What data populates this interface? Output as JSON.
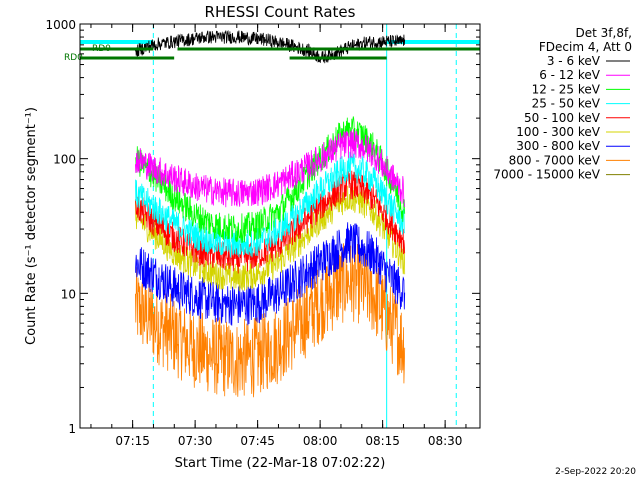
{
  "chart_data": {
    "type": "line",
    "title": "RHESSI Count Rates",
    "xlabel": "Start Time (22-Mar-18 07:02:22)",
    "ylabel": "Count Rate (s⁻¹ detector segment⁻¹)",
    "yscale": "log",
    "ylim": [
      1,
      1000
    ],
    "xlim_minutes_after_start": [
      0,
      96
    ],
    "x_tick_labels": [
      "07:15",
      "07:30",
      "07:45",
      "08:00",
      "08:15",
      "08:30"
    ],
    "x_tick_minutes_after_start": [
      12.63,
      27.63,
      42.63,
      57.63,
      72.63,
      87.63
    ],
    "y_tick_labels": [
      "1",
      "10",
      "100",
      "1000"
    ],
    "y_tick_values": [
      1,
      10,
      100,
      1000
    ],
    "grid": false,
    "legend_position": "right",
    "legend_header": [
      "Det 3f,8f,",
      "FDecim 4, Att 0"
    ],
    "footer_date": "2-Sep-2022 20:20",
    "flags": [
      {
        "label": "RD0",
        "segments": [
          [
            0,
            17.6
          ],
          [
            23.4,
            96
          ]
        ]
      },
      {
        "label": "RD0",
        "segments": [
          [
            0,
            22.6
          ],
          [
            50.3,
            73.6
          ]
        ]
      }
    ],
    "cyan_bands": [
      [
        0,
        17.6
      ],
      [
        73.6,
        96
      ]
    ],
    "vertical_lines": [
      {
        "minute": 17.6,
        "style": "dashed"
      },
      {
        "minute": 73.6,
        "style": "solid"
      },
      {
        "minute": 90.3,
        "style": "dashed"
      }
    ],
    "series": [
      {
        "name": "3 - 6 keV",
        "color": "#000000",
        "x": [
          13.3,
          14,
          17.6,
          22.6,
          30,
          38,
          45,
          50,
          55,
          58,
          62,
          65,
          69,
          73.6,
          77,
          78
        ],
        "y": [
          600,
          640,
          700,
          740,
          800,
          800,
          760,
          700,
          630,
          560,
          620,
          680,
          730,
          740,
          740,
          760
        ]
      },
      {
        "name": "6 - 12 keV",
        "color": "#ff00ff",
        "x": [
          13.3,
          17.6,
          22.6,
          27.6,
          32.6,
          37.6,
          42.6,
          47.6,
          52.6,
          57.6,
          62.6,
          64.6,
          67.6,
          70.6,
          74.6,
          78
        ],
        "y": [
          100,
          85,
          72,
          62,
          57,
          55,
          57,
          65,
          80,
          100,
          125,
          130,
          125,
          108,
          75,
          55
        ]
      },
      {
        "name": "12 - 25 keV",
        "color": "#00ff00",
        "x": [
          13.3,
          17.6,
          22.6,
          27.6,
          32.6,
          37.6,
          42.6,
          47.6,
          52.6,
          57.6,
          62.6,
          64.6,
          67.6,
          70.6,
          74.6,
          78
        ],
        "y": [
          100,
          75,
          52,
          38,
          32,
          30,
          32,
          40,
          62,
          100,
          150,
          165,
          150,
          120,
          70,
          40
        ]
      },
      {
        "name": "25 - 50 keV",
        "color": "#00ffff",
        "x": [
          13.3,
          17.6,
          22.6,
          27.6,
          32.6,
          37.6,
          42.6,
          47.6,
          52.6,
          57.6,
          62.6,
          64.6,
          67.6,
          70.6,
          74.6,
          78
        ],
        "y": [
          55,
          44,
          33,
          27,
          24,
          23,
          24,
          29,
          40,
          58,
          80,
          88,
          82,
          68,
          45,
          32
        ]
      },
      {
        "name": "50 - 100 keV",
        "color": "#ff0000",
        "x": [
          13.3,
          17.6,
          22.6,
          27.6,
          32.6,
          37.6,
          42.6,
          47.6,
          52.6,
          57.6,
          62.6,
          64.6,
          67.6,
          70.6,
          74.6,
          78
        ],
        "y": [
          45,
          34,
          26,
          21,
          19,
          18,
          19,
          23,
          31,
          44,
          60,
          65,
          60,
          50,
          33,
          24
        ]
      },
      {
        "name": "100 - 300 keV",
        "color": "#d4d400",
        "x": [
          13.3,
          17.6,
          22.6,
          27.6,
          32.6,
          37.6,
          42.6,
          47.6,
          52.6,
          57.6,
          62.6,
          64.6,
          67.6,
          70.6,
          74.6,
          78
        ],
        "y": [
          38,
          28,
          20,
          16,
          14,
          13,
          14,
          17,
          24,
          35,
          48,
          52,
          48,
          40,
          25,
          17
        ]
      },
      {
        "name": "300 - 800 keV",
        "color": "#0000ff",
        "x": [
          13.3,
          17.6,
          22.6,
          27.6,
          32.6,
          37.6,
          42.6,
          47.6,
          52.6,
          57.6,
          62.6,
          64.6,
          67.6,
          70.6,
          74.6,
          78
        ],
        "y": [
          17,
          14,
          11,
          9.5,
          8.5,
          8.2,
          8.5,
          10,
          13,
          17,
          22,
          24,
          22,
          19,
          13,
          10
        ]
      },
      {
        "name": "800 - 7000 keV",
        "color": "#ff8000",
        "x": [
          13.3,
          17.6,
          22.6,
          27.6,
          32.6,
          37.6,
          42.6,
          47.6,
          52.6,
          57.6,
          62.6,
          64.6,
          67.6,
          70.6,
          74.6,
          78
        ],
        "y": [
          8,
          6.2,
          4.8,
          3.9,
          3.4,
          3.2,
          3.4,
          4.2,
          5.8,
          8.5,
          11.5,
          12.5,
          11.5,
          9.5,
          6,
          4
        ]
      },
      {
        "name": "7000 - 15000 keV",
        "color": "#808000",
        "x": [],
        "y": []
      }
    ]
  }
}
